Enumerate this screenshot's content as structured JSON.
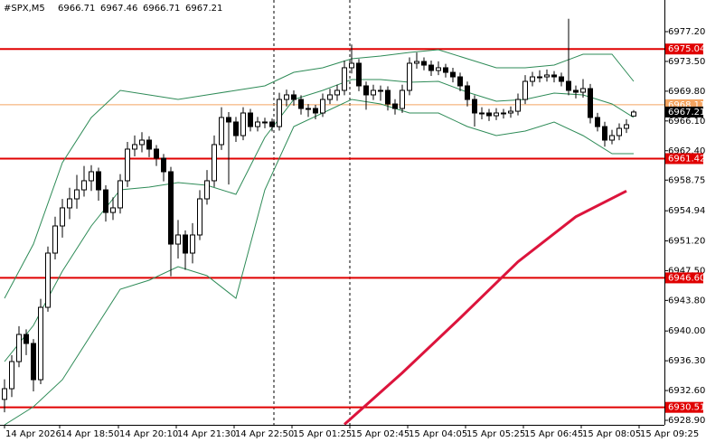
{
  "chart_data": {
    "type": "candlestick",
    "symbol": "#SPX,M5",
    "up_color": "#ffffff",
    "down_color": "#000000",
    "candles": [
      [
        6931.5,
        6934.0,
        6929.9,
        6932.83
      ],
      [
        6932.83,
        6937.0,
        6931.8,
        6936.2
      ],
      [
        6936.2,
        6940.6,
        6935.5,
        6939.57
      ],
      [
        6939.57,
        6940.2,
        6937.0,
        6938.45
      ],
      [
        6938.45,
        6939.0,
        6932.5,
        6933.95
      ],
      [
        6933.95,
        6944.0,
        6933.4,
        6942.94
      ],
      [
        6942.94,
        6950.5,
        6942.4,
        6949.68
      ],
      [
        6949.68,
        6954.2,
        6948.9,
        6953.05
      ],
      [
        6953.05,
        6956.4,
        6951.6,
        6955.3
      ],
      [
        6955.3,
        6957.8,
        6953.9,
        6956.42
      ],
      [
        6956.42,
        6959.4,
        6955.2,
        6957.54
      ],
      [
        6957.54,
        6960.5,
        6956.7,
        6958.67
      ],
      [
        6958.67,
        6960.6,
        6957.4,
        6959.79
      ],
      [
        6959.79,
        6960.3,
        6956.2,
        6957.54
      ],
      [
        6957.54,
        6958.1,
        6953.6,
        6954.73
      ],
      [
        6954.73,
        6956.6,
        6953.8,
        6955.3
      ],
      [
        6955.3,
        6959.5,
        6954.6,
        6958.67
      ],
      [
        6958.67,
        6963.5,
        6957.9,
        6962.6
      ],
      [
        6962.6,
        6964.3,
        6961.7,
        6963.16
      ],
      [
        6963.16,
        6964.7,
        6962.2,
        6963.72
      ],
      [
        6963.72,
        6964.2,
        6961.6,
        6962.6
      ],
      [
        6962.6,
        6963.1,
        6960.5,
        6961.47
      ],
      [
        6961.47,
        6962.0,
        6958.6,
        6959.79
      ],
      [
        6959.79,
        6960.4,
        6946.8,
        6950.8
      ],
      [
        6950.8,
        6953.8,
        6949.0,
        6951.93
      ],
      [
        6951.93,
        6952.5,
        6947.6,
        6949.68
      ],
      [
        6949.68,
        6953.4,
        6948.4,
        6951.93
      ],
      [
        6951.93,
        6957.5,
        6951.3,
        6956.42
      ],
      [
        6956.42,
        6960.0,
        6955.7,
        6958.67
      ],
      [
        6958.67,
        6964.3,
        6957.9,
        6963.16
      ],
      [
        6963.16,
        6967.8,
        6962.5,
        6966.53
      ],
      [
        6966.53,
        6967.2,
        6958.2,
        6965.97
      ],
      [
        6965.97,
        6966.6,
        6963.5,
        6964.28
      ],
      [
        6964.28,
        6967.8,
        6963.7,
        6967.09
      ],
      [
        6967.09,
        6967.6,
        6964.8,
        6965.4
      ],
      [
        6965.4,
        6966.6,
        6964.8,
        6965.97
      ],
      [
        6965.97,
        6966.5,
        6965.2,
        6965.97
      ],
      [
        6965.97,
        6966.4,
        6964.8,
        6965.4
      ],
      [
        6965.4,
        6969.6,
        6964.9,
        6968.77
      ],
      [
        6968.77,
        6970.0,
        6967.9,
        6969.34
      ],
      [
        6969.34,
        6969.9,
        6968.0,
        6968.77
      ],
      [
        6968.77,
        6969.3,
        6966.9,
        6967.65
      ],
      [
        6967.65,
        6968.2,
        6966.6,
        6967.65
      ],
      [
        6967.65,
        6968.1,
        6966.3,
        6967.09
      ],
      [
        6967.09,
        6969.5,
        6966.6,
        6968.77
      ],
      [
        6968.77,
        6970.1,
        6968.2,
        6969.34
      ],
      [
        6969.34,
        6970.6,
        6968.6,
        6969.9
      ],
      [
        6969.9,
        6973.6,
        6969.3,
        6972.71
      ],
      [
        6972.71,
        6975.6,
        6972.0,
        6973.27
      ],
      [
        6973.27,
        6973.8,
        6969.8,
        6970.46
      ],
      [
        6970.46,
        6971.0,
        6967.5,
        6969.34
      ],
      [
        6969.34,
        6970.6,
        6968.7,
        6969.9
      ],
      [
        6969.9,
        6970.5,
        6968.6,
        6969.9
      ],
      [
        6969.9,
        6970.4,
        6967.4,
        6968.21
      ],
      [
        6968.21,
        6968.8,
        6966.9,
        6967.65
      ],
      [
        6967.65,
        6970.6,
        6967.1,
        6969.9
      ],
      [
        6969.9,
        6974.0,
        6969.3,
        6973.27
      ],
      [
        6973.27,
        6974.6,
        6972.6,
        6973.49
      ],
      [
        6973.49,
        6974.0,
        6972.4,
        6973.04
      ],
      [
        6973.04,
        6973.6,
        6971.7,
        6972.37
      ],
      [
        6972.37,
        6973.5,
        6971.8,
        6972.71
      ],
      [
        6972.71,
        6973.2,
        6971.5,
        6972.14
      ],
      [
        6972.14,
        6972.7,
        6970.9,
        6971.58
      ],
      [
        6971.58,
        6972.1,
        6969.8,
        6970.46
      ],
      [
        6970.46,
        6971.0,
        6967.9,
        6968.77
      ],
      [
        6968.77,
        6969.3,
        6965.4,
        6967.09
      ],
      [
        6967.09,
        6967.8,
        6966.3,
        6967.09
      ],
      [
        6967.09,
        6967.6,
        6966.1,
        6966.75
      ],
      [
        6966.75,
        6967.7,
        6966.2,
        6967.09
      ],
      [
        6967.09,
        6967.6,
        6966.4,
        6967.09
      ],
      [
        6967.09,
        6967.9,
        6966.5,
        6967.31
      ],
      [
        6967.31,
        6969.5,
        6966.8,
        6968.77
      ],
      [
        6968.77,
        6971.8,
        6968.2,
        6971.02
      ],
      [
        6971.02,
        6972.2,
        6970.4,
        6971.58
      ],
      [
        6971.58,
        6972.4,
        6970.9,
        6971.58
      ],
      [
        6971.58,
        6972.5,
        6971.0,
        6971.81
      ],
      [
        6971.81,
        6972.3,
        6970.9,
        6971.58
      ],
      [
        6971.58,
        6972.1,
        6970.4,
        6971.02
      ],
      [
        6971.02,
        6978.8,
        6969.3,
        6969.9
      ],
      [
        6969.9,
        6970.5,
        6968.9,
        6969.67
      ],
      [
        6969.67,
        6971.3,
        6969.0,
        6970.12
      ],
      [
        6970.12,
        6970.7,
        6965.8,
        6966.53
      ],
      [
        6966.53,
        6967.1,
        6964.8,
        6965.4
      ],
      [
        6965.4,
        6966.0,
        6962.9,
        6963.72
      ],
      [
        6963.72,
        6965.0,
        6963.2,
        6964.28
      ],
      [
        6964.28,
        6965.8,
        6963.7,
        6965.18
      ],
      [
        6965.18,
        6966.3,
        6964.6,
        6965.63
      ],
      [
        6966.71,
        6967.46,
        6966.71,
        6967.21
      ]
    ],
    "bands": {
      "color": "#2e8b57",
      "x": [
        0,
        4,
        8,
        12,
        16,
        20,
        24,
        28,
        32,
        36,
        40,
        44,
        48,
        52,
        56,
        60,
        64,
        68,
        72,
        76,
        80,
        84,
        87
      ],
      "upper": [
        6944.06,
        6950.8,
        6960.91,
        6966.53,
        6969.9,
        6969.34,
        6968.77,
        6969.34,
        6969.9,
        6970.46,
        6972.14,
        6972.71,
        6973.83,
        6974.17,
        6974.62,
        6974.95,
        6973.83,
        6972.71,
        6972.71,
        6973.04,
        6974.39,
        6974.39,
        6971.02
      ],
      "middle": [
        6936.2,
        6940.69,
        6947.43,
        6953.05,
        6957.54,
        6957.88,
        6958.44,
        6958.1,
        6956.98,
        6964.06,
        6968.77,
        6969.9,
        6971.25,
        6971.25,
        6970.91,
        6971.02,
        6969.67,
        6968.55,
        6968.77,
        6969.56,
        6969.34,
        6968.21,
        6966.53
      ],
      "lower": [
        6928.34,
        6930.59,
        6933.95,
        6939.57,
        6945.19,
        6946.31,
        6948.0,
        6946.87,
        6944.06,
        6957.54,
        6965.4,
        6967.09,
        6968.77,
        6968.21,
        6967.09,
        6967.09,
        6965.4,
        6964.28,
        6964.84,
        6965.97,
        6964.28,
        6962.04,
        6962.04
      ]
    },
    "ma": {
      "color": "#dc143c",
      "x": [
        47,
        55,
        63,
        71,
        79,
        86
      ],
      "values": [
        6928.4,
        6934.8,
        6941.6,
        6948.6,
        6954.2,
        6957.4
      ]
    },
    "levels": {
      "color": "#e00000",
      "values": [
        6975.04,
        6961.42,
        6946.6,
        6930.51
      ],
      "value_labels": [
        "6975.04",
        "6961.42",
        "6946.60",
        "6930.51"
      ]
    },
    "ask_line": {
      "color": "#f4a460",
      "value": 6968.11
    },
    "bid": 6967.21,
    "ylim": [
      6928.34,
      6981.13
    ],
    "yticks": [
      {
        "value": 6977.2,
        "label": "6977.20"
      },
      {
        "value": 6973.5,
        "label": "6973.50"
      },
      {
        "value": 6969.8,
        "label": "6969.80"
      },
      {
        "value": 6966.1,
        "label": "6966.10"
      },
      {
        "value": 6962.4,
        "label": "6962.40"
      },
      6958.75,
      6954.94,
      {
        "value": 6951.2,
        "label": "6951.20"
      },
      {
        "value": 6947.5,
        "label": "6947.50"
      },
      {
        "value": 6943.8,
        "label": "6943.80"
      },
      {
        "value": 6940,
        "label": "6940.00"
      },
      {
        "value": 6936.3,
        "label": "6936.30"
      },
      {
        "value": 6932.6,
        "label": "6932.60"
      },
      {
        "value": 6928.9,
        "label": "6928.90"
      }
    ],
    "xlim": [
      -0.625,
      91.25
    ],
    "xticks": [
      {
        "value": 0,
        "label": "14 Apr 2026"
      },
      {
        "value": 7.625,
        "label": "14 Apr 18:50"
      },
      {
        "value": 15.75,
        "label": "14 Apr 20:10"
      },
      {
        "value": 23.75,
        "label": "14 Apr 21:30"
      },
      {
        "value": 31.75,
        "label": "14 Apr 22:50"
      },
      {
        "value": 39.75,
        "label": "15 Apr 01:25"
      },
      {
        "value": 47.75,
        "label": "15 Apr 02:45"
      },
      {
        "value": 55.75,
        "label": "15 Apr 04:05"
      },
      {
        "value": 63.75,
        "label": "15 Apr 05:25"
      },
      {
        "value": 71.75,
        "label": "15 Apr 06:45"
      },
      {
        "value": 79.75,
        "label": "15 Apr 08:05"
      },
      {
        "value": 87.75,
        "label": "15 Apr 09:25"
      }
    ]
  }
}
